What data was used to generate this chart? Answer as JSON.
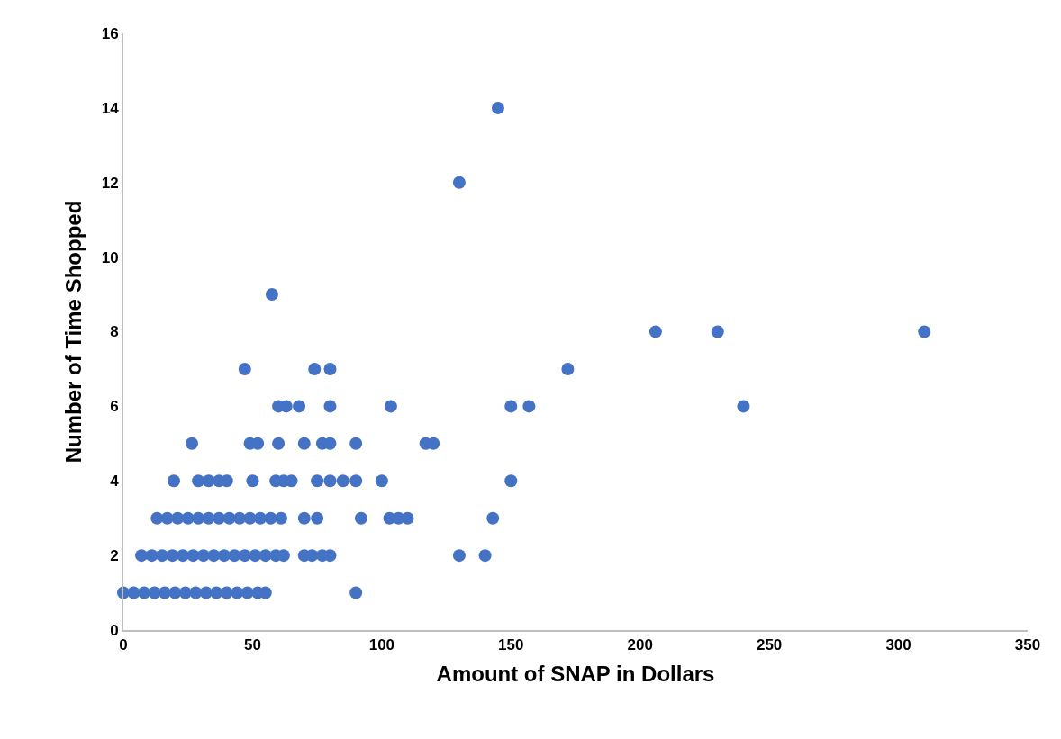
{
  "chart_data": {
    "type": "scatter",
    "xlabel": "Amount of SNAP in Dollars",
    "ylabel": "Number of Time Shopped",
    "x": [
      0,
      4,
      8,
      12,
      16,
      20,
      24,
      28,
      32,
      36,
      40,
      44,
      48,
      52,
      55,
      90,
      7,
      11,
      15,
      19,
      23,
      27,
      31,
      35,
      39,
      43,
      47,
      51,
      55,
      59,
      62,
      70,
      73,
      77,
      80,
      130,
      140,
      13,
      17,
      21,
      25,
      29,
      33,
      37,
      41,
      45,
      49,
      53,
      57,
      61,
      70,
      75,
      92,
      103,
      106.5,
      110,
      143,
      19.5,
      29,
      33,
      37,
      40,
      50,
      59,
      62,
      65,
      75,
      80,
      85,
      90,
      100,
      150,
      26.5,
      49,
      52,
      60,
      70,
      77,
      80,
      90,
      117,
      120,
      60,
      63,
      68,
      80,
      103.5,
      150,
      157,
      240,
      47,
      74,
      80,
      172,
      206,
      230,
      310,
      57.5,
      130,
      145
    ],
    "series": [
      {
        "color": "#4472c4",
        "values": [
          1,
          1,
          1,
          1,
          1,
          1,
          1,
          1,
          1,
          1,
          1,
          1,
          1,
          1,
          1,
          1,
          2,
          2,
          2,
          2,
          2,
          2,
          2,
          2,
          2,
          2,
          2,
          2,
          2,
          2,
          2,
          2,
          2,
          2,
          2,
          2,
          2,
          3,
          3,
          3,
          3,
          3,
          3,
          3,
          3,
          3,
          3,
          3,
          3,
          3,
          3,
          3,
          3,
          3,
          3,
          3,
          3,
          4,
          4,
          4,
          4,
          4,
          4,
          4,
          4,
          4,
          4,
          4,
          4,
          4,
          4,
          4,
          5,
          5,
          5,
          5,
          5,
          5,
          5,
          5,
          5,
          5,
          6,
          6,
          6,
          6,
          6,
          6,
          6,
          6,
          7,
          7,
          7,
          7,
          8,
          8,
          8,
          9,
          12,
          14
        ]
      }
    ],
    "xlim": [
      0,
      350
    ],
    "xticks": [
      0,
      50,
      100,
      150,
      200,
      250,
      300,
      350
    ],
    "ylim": [
      0,
      16
    ],
    "yticks": [
      0,
      2,
      4,
      6,
      8,
      10,
      12,
      14,
      16
    ],
    "grid": false,
    "marker": "circle"
  }
}
